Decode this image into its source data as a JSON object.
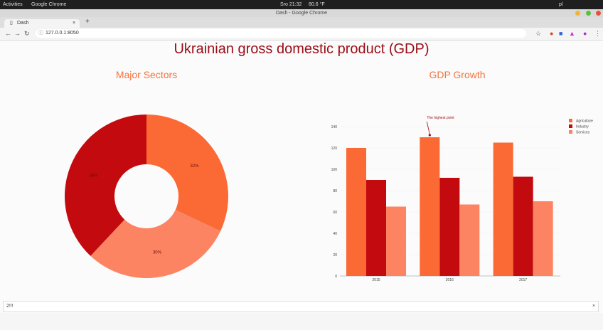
{
  "os": {
    "activities": "Activities",
    "app_menu": "Google Chrome",
    "clock": "Sro 21:32",
    "temp": "80.6 °F",
    "lang": "pl"
  },
  "window": {
    "title": "Dash - Google Chrome"
  },
  "tab": {
    "title": "Dash",
    "new_tab": "+"
  },
  "address": {
    "url": "127.0.0.1:8050"
  },
  "page": {
    "title": "Ukrainian gross domestic product (GDP)"
  },
  "donut": {
    "title": "Major Sectors",
    "chart_data": {
      "type": "pie",
      "labels": [
        "Agriculture",
        "Services",
        "Industry"
      ],
      "values": [
        32,
        30,
        38
      ],
      "value_text": [
        "32%",
        "30%",
        "38%"
      ],
      "hole": true
    }
  },
  "bars": {
    "title": "GDP Growth",
    "chart_data": {
      "type": "bar",
      "categories": [
        "2015",
        "2016",
        "2017"
      ],
      "series": [
        {
          "name": "Agriculture",
          "values": [
            120,
            130,
            125
          ]
        },
        {
          "name": "Industry",
          "values": [
            90,
            92,
            93
          ]
        },
        {
          "name": "Services",
          "values": [
            65,
            67,
            70
          ]
        }
      ],
      "ylim": [
        0,
        150
      ],
      "yticks": [
        "0",
        "20",
        "40",
        "60",
        "80",
        "100",
        "120",
        "140"
      ],
      "annotation": "The highest point"
    }
  },
  "colors": {
    "agriculture": "#fb6a35",
    "industry": "#c30a0e",
    "services": "#fc8462"
  },
  "devtools": {
    "input": "2!!!"
  }
}
